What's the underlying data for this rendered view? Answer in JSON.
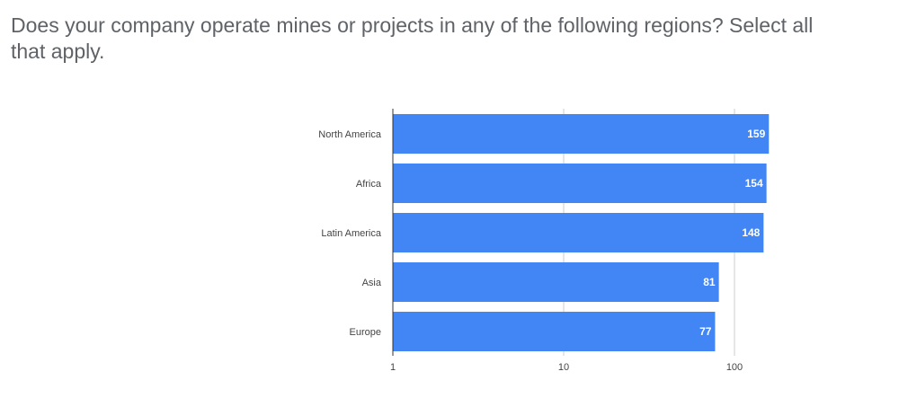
{
  "title": "Does your company operate mines or projects in any of the following regions? Select all that apply.",
  "colors": {
    "bar": "#4285f4",
    "grid": "#cccccc",
    "axis": "#333333"
  },
  "chart_data": {
    "type": "bar",
    "orientation": "horizontal",
    "title": "Does your company operate mines or projects in any of the following regions? Select all that apply.",
    "categories": [
      "North America",
      "Africa",
      "Latin America",
      "Asia",
      "Europe"
    ],
    "values": [
      159,
      154,
      148,
      81,
      77
    ],
    "xscale": "log",
    "xlim": [
      1,
      180
    ],
    "xticks": [
      1,
      10,
      100
    ],
    "xtick_labels": [
      "1",
      "10",
      "100"
    ],
    "grid": true,
    "legend": "none"
  }
}
